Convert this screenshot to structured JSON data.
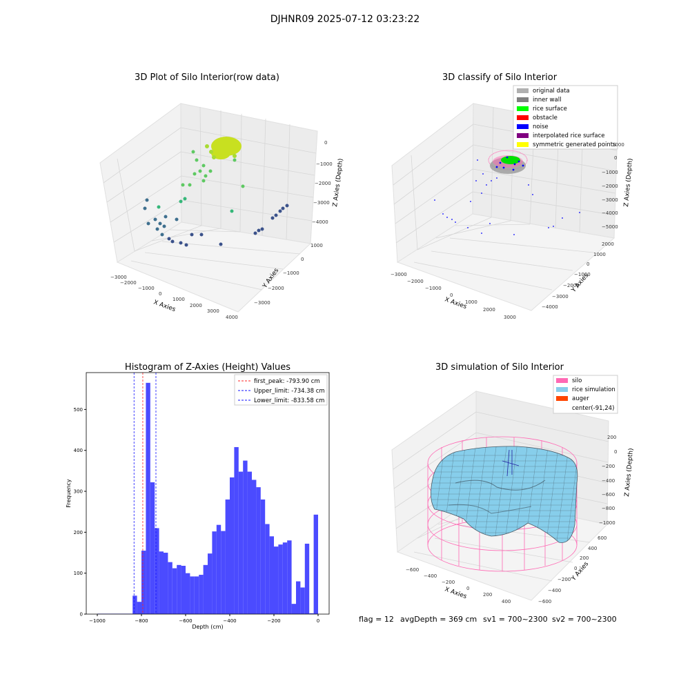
{
  "figure_title": "DJHNR09 2025-07-12 03:23:22",
  "colors": {
    "hist_bar": "#4b4bff",
    "peak_line": "#ff2020",
    "limit_line": "#1010ff",
    "pane": "#f2f2f2",
    "grid": "#d9d9d9",
    "silo": "#ff69b4",
    "rice": "#87ceeb",
    "auger": "#ff4500",
    "noise": "#0000ff",
    "rice_surface": "#00ff00",
    "inner_wall": "#808080",
    "original": "#b0b0b0",
    "obstacle": "#ff0000",
    "interp": "#800080",
    "symmetric": "#ffff00"
  },
  "status_line": {
    "flag": "flag = 12",
    "avg_depth": "avgDepth = 369 cm",
    "sv1": "sv1 = 700~2300",
    "sv2": "sv2 = 700~2300"
  },
  "chart_data": [
    {
      "type": "scatter",
      "dims": 3,
      "title": "3D Plot of Silo Interior(row data)",
      "xlabel": "X Axies",
      "ylabel": "Y Axies",
      "zlabel": "Z Axies (Depth)",
      "x_ticks": [
        "−3000",
        "−2000",
        "−1000",
        "0",
        "1000",
        "2000",
        "3000",
        "4000"
      ],
      "y_ticks": [
        "−3000",
        "−2000",
        "−1000",
        "0",
        "1000"
      ],
      "z_ticks": [
        "−4000",
        "−3000",
        "−2000",
        "−1000",
        "0"
      ],
      "colormap": "viridis"
    },
    {
      "type": "scatter",
      "dims": 3,
      "title": "3D classify of Silo Interior",
      "xlabel": "X Axies",
      "ylabel": "Y Axies",
      "zlabel": "Z Axies (Depth)",
      "x_ticks": [
        "−3000",
        "−2000",
        "−1000",
        "0",
        "1000",
        "2000",
        "3000"
      ],
      "y_ticks": [
        "−4000",
        "−3000",
        "−2000",
        "−1000",
        "0",
        "1000",
        "2000"
      ],
      "z_ticks": [
        "−5000",
        "−4000",
        "−3000",
        "−2000",
        "−1000",
        "0",
        "1000"
      ],
      "legend_position": "upper-right",
      "legend": [
        {
          "label": "original data",
          "color": "#b0b0b0"
        },
        {
          "label": "inner wall",
          "color": "#808080"
        },
        {
          "label": "rice surface",
          "color": "#00ff00"
        },
        {
          "label": "obstacle",
          "color": "#ff0000"
        },
        {
          "label": "noise",
          "color": "#0000ff"
        },
        {
          "label": "interpolated rice surface",
          "color": "#800080"
        },
        {
          "label": "symmetric generated points",
          "color": "#ffff00"
        }
      ]
    },
    {
      "type": "bar",
      "title": "Histogram of Z-Axies (Height) Values",
      "xlabel": "Depth (cm)",
      "ylabel": "Frequency",
      "xlim": [
        -1050,
        50
      ],
      "ylim": [
        0,
        590
      ],
      "x_ticks": [
        -1000,
        -800,
        -600,
        -400,
        -200,
        0
      ],
      "x_tick_labels": [
        "−1000",
        "−800",
        "−600",
        "−400",
        "−200",
        "0"
      ],
      "y_ticks": [
        0,
        100,
        200,
        300,
        400,
        500
      ],
      "bins_start": -1000,
      "bin_width": 20,
      "values": [
        1,
        1,
        1,
        1,
        1,
        1,
        1,
        1,
        45,
        30,
        155,
        565,
        322,
        210,
        153,
        150,
        127,
        112,
        120,
        118,
        100,
        92,
        92,
        96,
        120,
        148,
        202,
        218,
        203,
        280,
        334,
        408,
        348,
        375,
        348,
        328,
        310,
        280,
        220,
        190,
        165,
        170,
        175,
        180,
        25,
        80,
        65,
        172,
        2,
        243
      ],
      "vlines": [
        {
          "label": "first_peak: -793.90 cm",
          "x": -793.9,
          "color": "#ff2020"
        },
        {
          "label": "Upper_limit: -734.38 cm",
          "x": -734.38,
          "color": "#1010ff"
        },
        {
          "label": "Lower_limit: -833.58 cm",
          "x": -833.58,
          "color": "#1010ff"
        }
      ],
      "legend_position": "upper-right"
    },
    {
      "type": "area",
      "dims": 3,
      "title": "3D simulation of Silo Interior",
      "xlabel": "X Axies",
      "ylabel": "Y Axies",
      "zlabel": "Z Axies (Depth)",
      "x_ticks": [
        "−600",
        "−400",
        "−200",
        "0",
        "200",
        "400"
      ],
      "y_ticks": [
        "−600",
        "−400",
        "−200",
        "0",
        "200",
        "400",
        "600"
      ],
      "z_ticks": [
        "−1000",
        "−800",
        "−600",
        "−400",
        "−200",
        "0",
        "200"
      ],
      "legend_position": "upper-right",
      "legend": [
        {
          "label": "silo",
          "color": "#ff69b4"
        },
        {
          "label": "rice simulation",
          "color": "#87ceeb"
        },
        {
          "label": "auger",
          "color": "#ff4500"
        },
        {
          "label": "center(-91,24)",
          "color": "none"
        }
      ]
    }
  ]
}
